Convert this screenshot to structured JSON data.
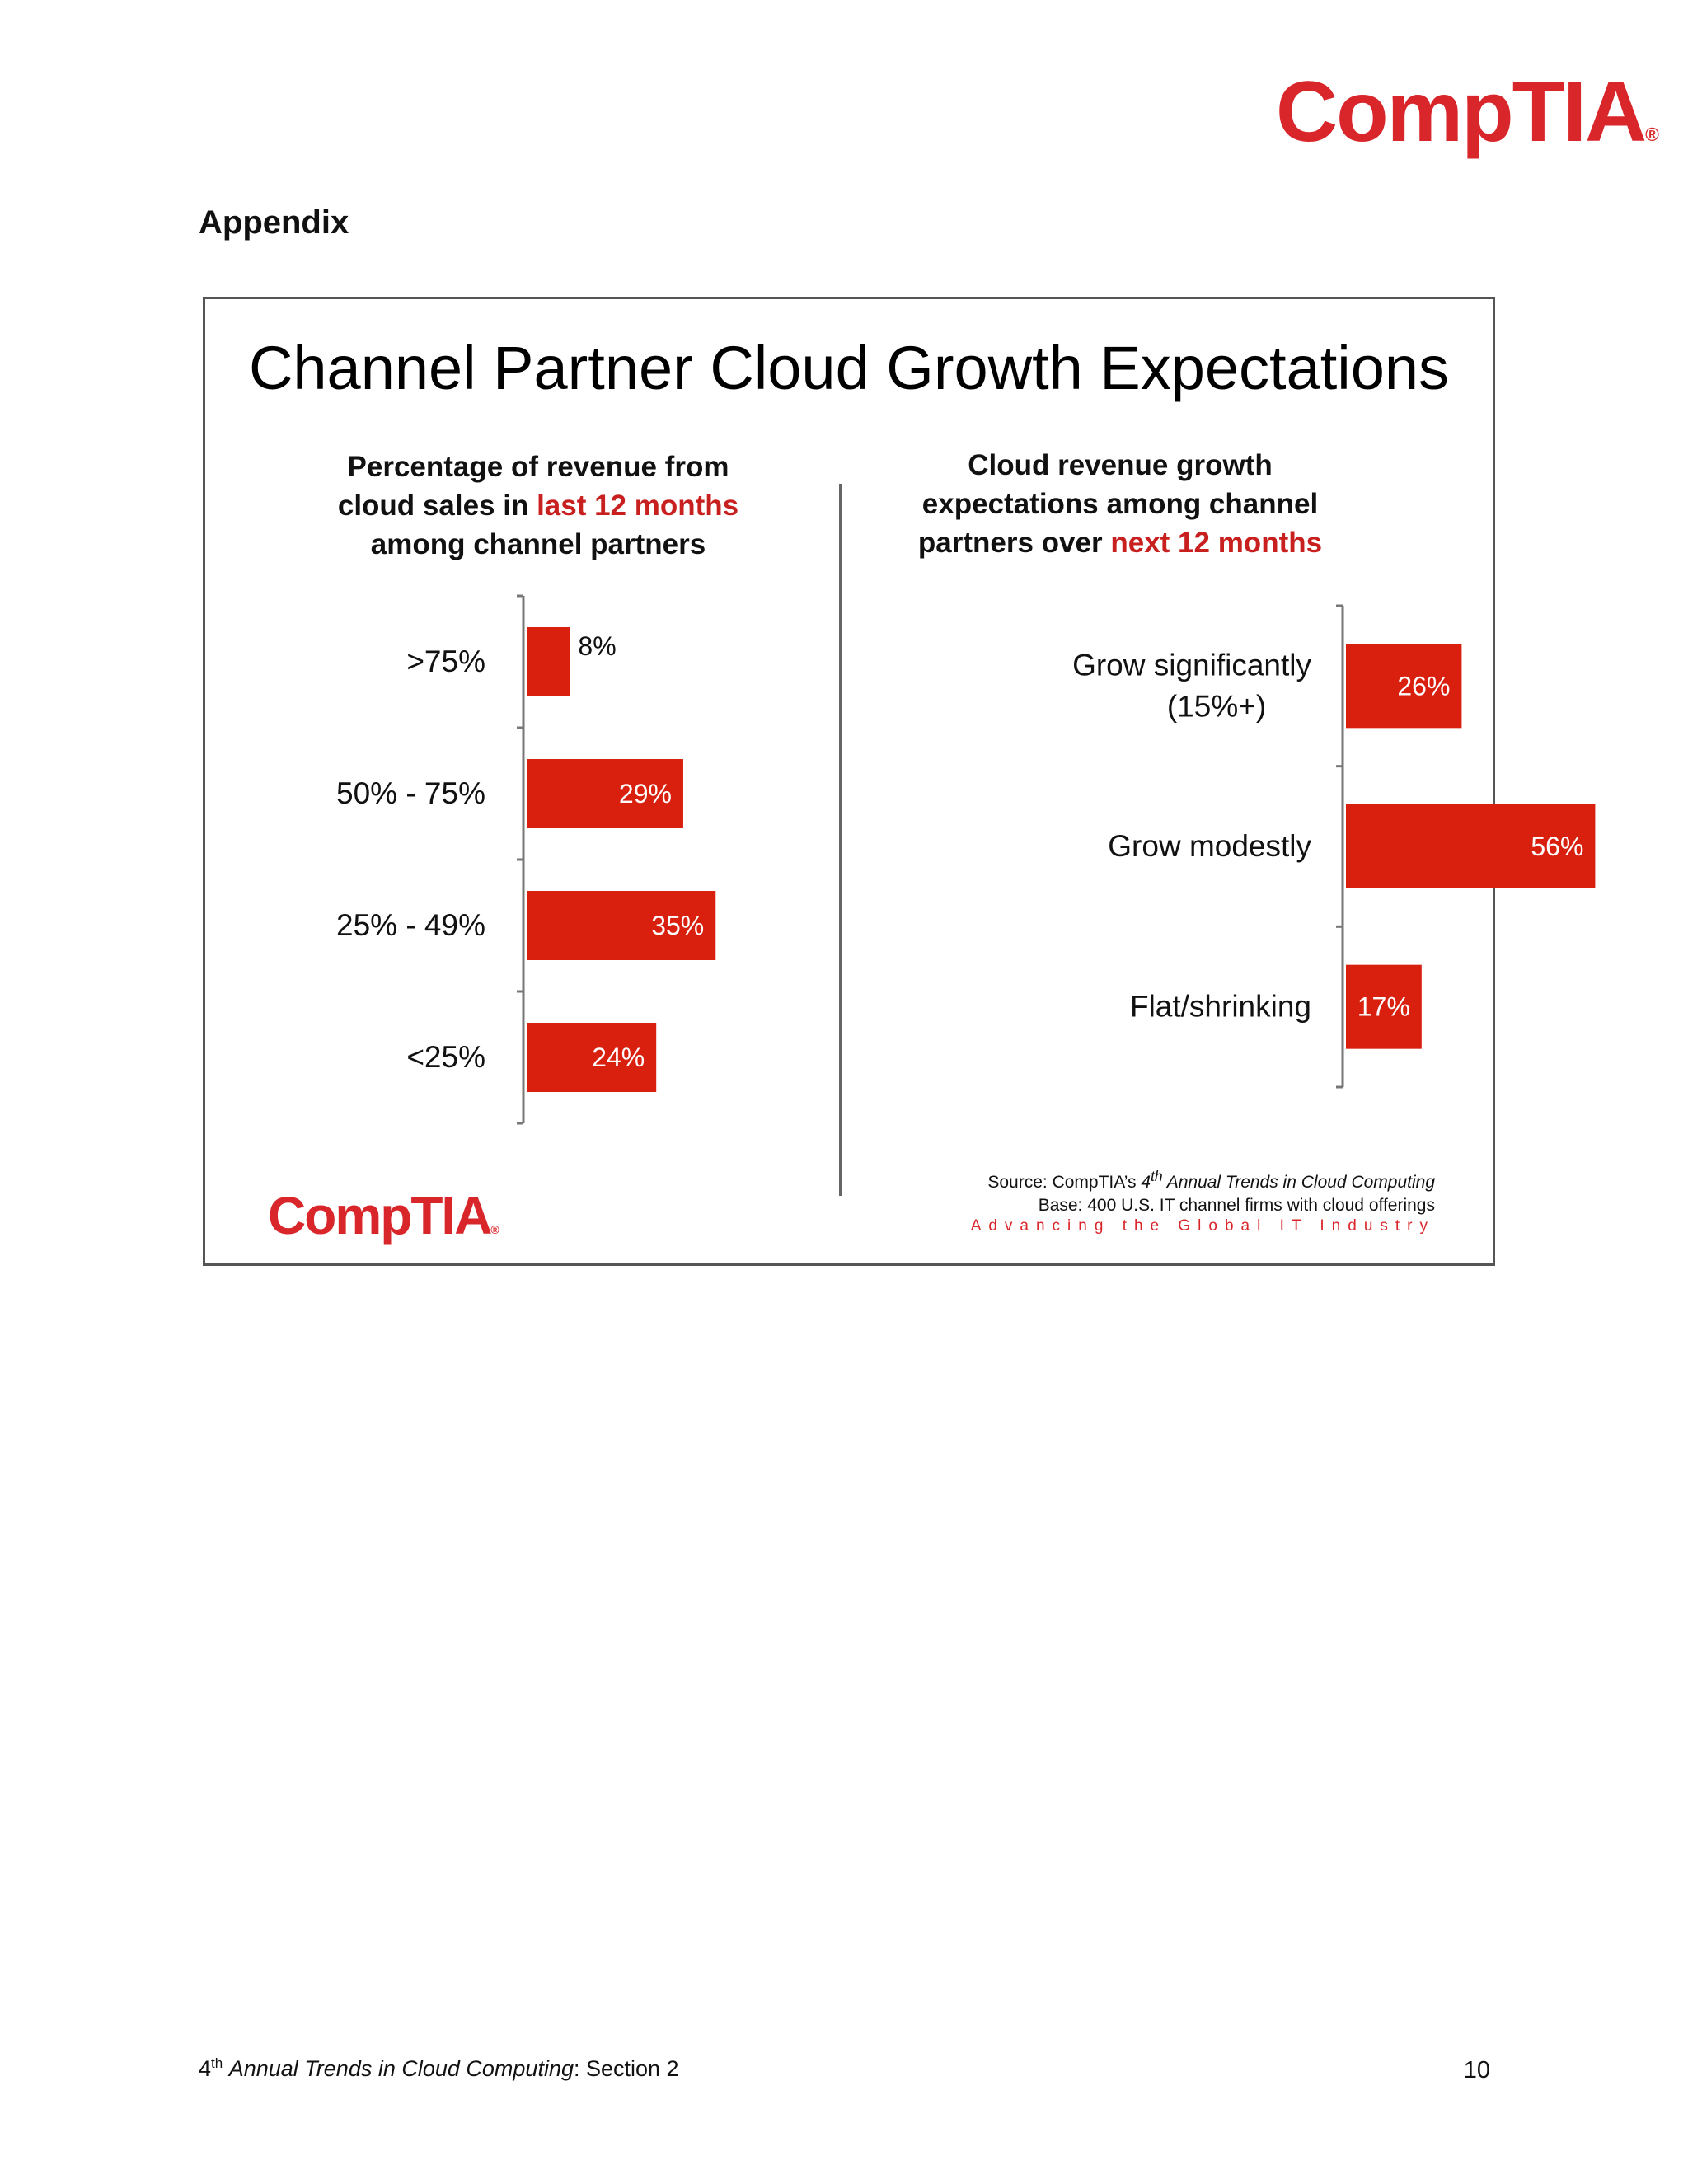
{
  "header": {
    "logo_text": "CompTIA",
    "logo_mark": "®",
    "section_heading": "Appendix"
  },
  "slide": {
    "title": "Channel Partner Cloud Growth Expectations",
    "left_title": {
      "part1": "Percentage of revenue from",
      "part2": "cloud sales in ",
      "highlight": "last 12 months",
      "part3": "among channel partners"
    },
    "right_title": {
      "part1": "Cloud revenue growth",
      "part2": "expectations among channel",
      "part3": "partners over ",
      "highlight": "next 12 months"
    },
    "logo_text": "CompTIA",
    "logo_mark": "®",
    "source": {
      "prefix": "Source: CompTIA’s ",
      "sup": "th",
      "num": "4",
      "italic": "Annual Trends in Cloud Computing",
      "base": "Base: 400 U.S. IT channel firms with cloud offerings"
    },
    "tagline": "Advancing the Global IT Industry"
  },
  "colors": {
    "bar": "#d91f0e",
    "accent": "#c81f1f",
    "axis": "#777777"
  },
  "chart_data": [
    {
      "type": "bar",
      "orientation": "horizontal",
      "title": "Percentage of revenue from cloud sales in last 12 months among channel partners",
      "categories": [
        ">75%",
        "50% - 75%",
        "25% - 49%",
        "<25%"
      ],
      "values": [
        8,
        29,
        35,
        24
      ],
      "data_labels": [
        "8%",
        "29%",
        "35%",
        "24%"
      ],
      "xlim": [
        0,
        60
      ]
    },
    {
      "type": "bar",
      "orientation": "horizontal",
      "title": "Cloud revenue growth expectations among channel partners over next 12 months",
      "categories": [
        "Grow significantly (15%+)",
        "Grow modestly",
        "Flat/shrinking"
      ],
      "values": [
        26,
        56,
        17
      ],
      "data_labels": [
        "26%",
        "56%",
        "17%"
      ],
      "xlim": [
        0,
        60
      ]
    }
  ],
  "footer": {
    "num": "4",
    "sup": "th",
    "italic": "Annual Trends in Cloud Computing",
    "rest": ": Section 2",
    "page": "10"
  }
}
